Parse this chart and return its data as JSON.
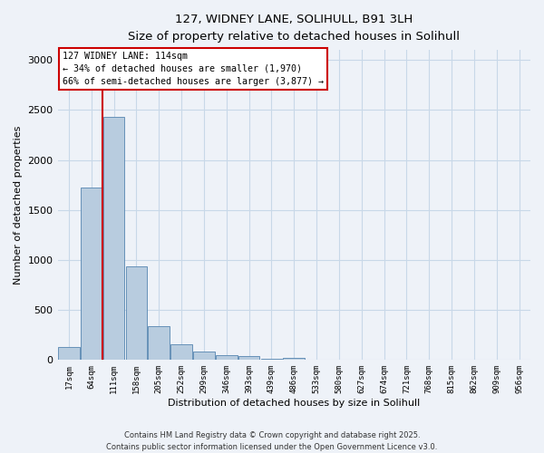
{
  "title_line1": "127, WIDNEY LANE, SOLIHULL, B91 3LH",
  "title_line2": "Size of property relative to detached houses in Solihull",
  "xlabel": "Distribution of detached houses by size in Solihull",
  "ylabel": "Number of detached properties",
  "categories": [
    "17sqm",
    "64sqm",
    "111sqm",
    "158sqm",
    "205sqm",
    "252sqm",
    "299sqm",
    "346sqm",
    "393sqm",
    "439sqm",
    "486sqm",
    "533sqm",
    "580sqm",
    "627sqm",
    "674sqm",
    "721sqm",
    "768sqm",
    "815sqm",
    "862sqm",
    "909sqm",
    "956sqm"
  ],
  "values": [
    130,
    1720,
    2430,
    940,
    335,
    155,
    85,
    50,
    35,
    10,
    20,
    0,
    0,
    0,
    0,
    0,
    0,
    0,
    0,
    0,
    0
  ],
  "bar_color": "#b8ccdf",
  "bar_edge_color": "#5585b0",
  "grid_color": "#c8d8e8",
  "background_color": "#eef2f8",
  "vline_x": 2.0,
  "vline_color": "#cc0000",
  "annotation_text": "127 WIDNEY LANE: 114sqm\n← 34% of detached houses are smaller (1,970)\n66% of semi-detached houses are larger (3,877) →",
  "annotation_box_color": "#cc0000",
  "footnote": "Contains HM Land Registry data © Crown copyright and database right 2025.\nContains public sector information licensed under the Open Government Licence v3.0.",
  "ylim": [
    0,
    3100
  ],
  "yticks": [
    0,
    500,
    1000,
    1500,
    2000,
    2500,
    3000
  ]
}
